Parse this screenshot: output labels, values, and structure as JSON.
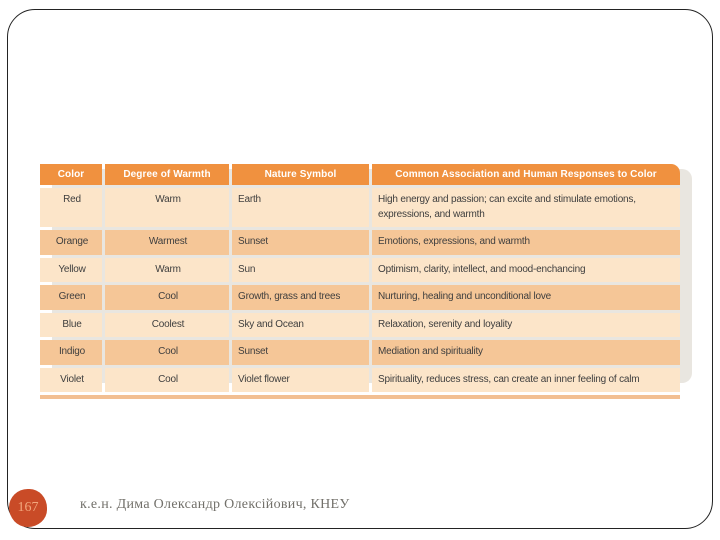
{
  "slide": {
    "table": {
      "columns": [
        "Color",
        "Degree of Warmth",
        "Nature Symbol",
        "Common Association and Human Responses to Color"
      ],
      "rows": [
        {
          "color": "Red",
          "warmth": "Warm",
          "symbol": "Earth",
          "association": "High energy and passion; can excite and stimulate emotions, expressions, and warmth"
        },
        {
          "color": "Orange",
          "warmth": "Warmest",
          "symbol": "Sunset",
          "association": "Emotions, expressions, and warmth"
        },
        {
          "color": "Yellow",
          "warmth": "Warm",
          "symbol": "Sun",
          "association": "Optimism, clarity, intellect, and mood-enchancing"
        },
        {
          "color": "Green",
          "warmth": "Cool",
          "symbol": "Growth, grass and trees",
          "association": "Nurturing, healing and unconditional love"
        },
        {
          "color": "Blue",
          "warmth": "Coolest",
          "symbol": "Sky and Ocean",
          "association": "Relaxation, serenity and loyality"
        },
        {
          "color": "Indigo",
          "warmth": "Cool",
          "symbol": "Sunset",
          "association": "Mediation and spirituality"
        },
        {
          "color": "Violet",
          "warmth": "Cool",
          "symbol": "Violet flower",
          "association": "Spirituality, reduces stress, can create an inner feeling of calm"
        }
      ]
    },
    "footer": {
      "page_number": "167",
      "credit": "к.е.н. Дима Олександр Олексійович, КНЕУ"
    },
    "colors": {
      "header_bg": "#f0913f",
      "row_light": "#fce5c9",
      "row_dark": "#f5c697",
      "bottom_strip": "#f2bf92",
      "body_text": "#3e3e3e",
      "header_text": "#ffffff",
      "badge_bg": "#c94b27",
      "badge_text": "#f2a77d",
      "footer_text": "#72706a",
      "slide_border": "#232323"
    }
  }
}
